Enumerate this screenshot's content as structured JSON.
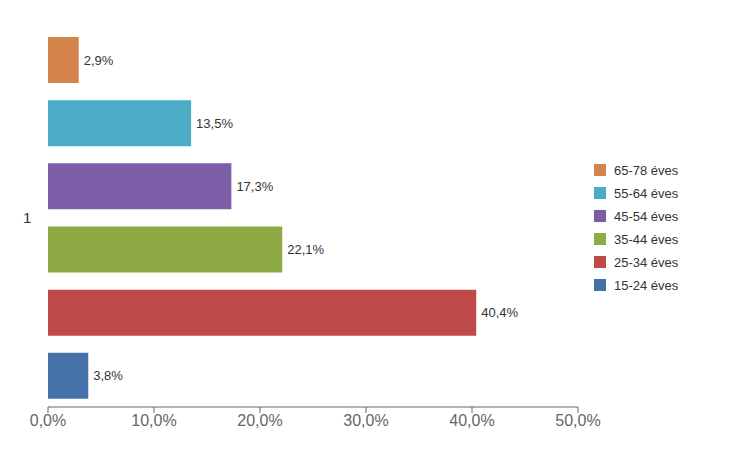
{
  "chart_data": {
    "type": "bar",
    "orientation": "horizontal",
    "categories": [
      "65-78 éves",
      "55-64 éves",
      "45-54 éves",
      "35-44 éves",
      "25-34 éves",
      "15-24 éves"
    ],
    "values": [
      2.9,
      13.5,
      17.3,
      22.1,
      40.4,
      3.8
    ],
    "value_labels": [
      "2,9%",
      "13,5%",
      "17,3%",
      "22,1%",
      "40,4%",
      "3,8%"
    ],
    "colors": [
      "#D4834A",
      "#4BACC6",
      "#7B5EA7",
      "#8EAA45",
      "#BE4B48",
      "#4472A8"
    ],
    "data_labels": true,
    "ylabel": "1",
    "xlim": [
      0,
      50
    ],
    "xticks": [
      {
        "value": 0,
        "label": "0,0%"
      },
      {
        "value": 10,
        "label": "10,0%"
      },
      {
        "value": 20,
        "label": "20,0%"
      },
      {
        "value": 30,
        "label": "30,0%"
      },
      {
        "value": 40,
        "label": "40,0%"
      },
      {
        "value": 50,
        "label": "50,0%"
      }
    ],
    "tick_labels": "x",
    "grid": false,
    "legend": "right"
  }
}
